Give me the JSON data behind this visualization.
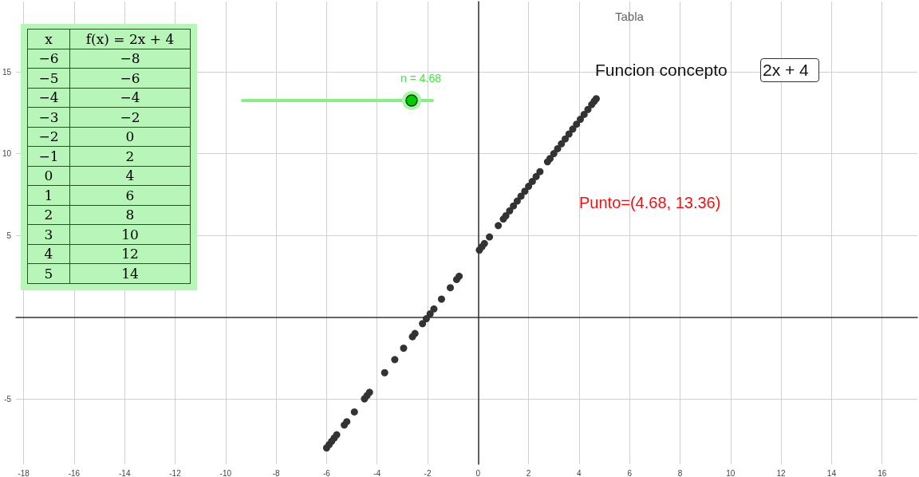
{
  "chart_data": {
    "type": "scatter",
    "title": "Tabla",
    "x": [
      -6,
      -5.9,
      -5.8,
      -5.7,
      -5.6,
      -5.3,
      -5.2,
      -4.9,
      -4.5,
      -4.4,
      -4.3,
      -3.7,
      -3.3,
      -2.95,
      -2.6,
      -2.5,
      -2.2,
      -2.05,
      -1.9,
      -1.75,
      -1.45,
      -1.1,
      -0.85,
      -0.75,
      0.05,
      0.15,
      0.25,
      0.45,
      0.8,
      1.0,
      1.1,
      1.25,
      1.4,
      1.55,
      1.7,
      1.85,
      2.0,
      2.15,
      2.3,
      2.45,
      2.75,
      2.85,
      3.0,
      3.15,
      3.3,
      3.45,
      3.6,
      3.75,
      3.9,
      4.05,
      4.2,
      4.35,
      4.5,
      4.6,
      4.68
    ],
    "series": [
      {
        "color": "#333333",
        "values": [
          -8,
          -7.8,
          -7.6,
          -7.4,
          -7.2,
          -6.6,
          -6.4,
          -5.8,
          -5,
          -4.8,
          -4.6,
          -3.4,
          -2.6,
          -1.9,
          -1.2,
          -1,
          -0.4,
          -0.1,
          0.2,
          0.5,
          1.1,
          1.8,
          2.3,
          2.5,
          4.1,
          4.3,
          4.5,
          4.9,
          5.6,
          6,
          6.2,
          6.5,
          6.8,
          7.1,
          7.4,
          7.7,
          8,
          8.3,
          8.6,
          8.9,
          9.5,
          9.7,
          10,
          10.3,
          10.6,
          10.9,
          11.2,
          11.5,
          11.8,
          12.1,
          12.4,
          12.7,
          13,
          13.2,
          13.36
        ]
      }
    ],
    "xlim": [
      -18.3,
      17.4
    ],
    "ylim": [
      -9,
      19.3
    ],
    "xticks": [
      -18,
      -16,
      -14,
      -12,
      -10,
      -8,
      -6,
      -4,
      -2,
      0,
      2,
      4,
      6,
      8,
      10,
      12,
      14,
      16
    ],
    "yticks": [
      -5,
      5,
      10,
      15
    ],
    "grid": true,
    "marker": "circle",
    "annotations": [
      "Funcion concepto",
      "2x + 4",
      "n = 4.68",
      "Punto=(4.68, 13.36)",
      "x",
      "f(x) = 2x + 4",
      "−6",
      "−8",
      "−5",
      "−6",
      "−4",
      "−4",
      "−3",
      "−2",
      "−2",
      "0",
      "−1",
      "2",
      "0",
      "4",
      "1",
      "6",
      "2",
      "8",
      "3",
      "10",
      "4",
      "12",
      "5",
      "14"
    ]
  }
}
